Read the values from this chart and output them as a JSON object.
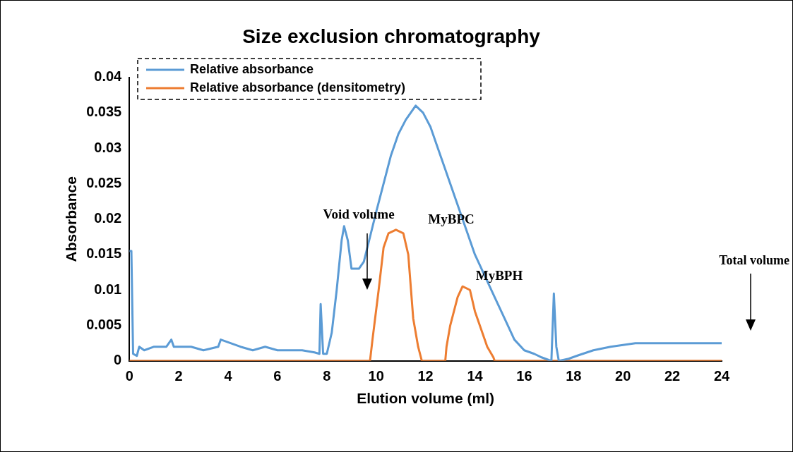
{
  "chart_data": {
    "type": "line",
    "title": "Size exclusion chromatography",
    "xlabel": "Elution volume (ml)",
    "ylabel": "Absorbance",
    "xlim": [
      0,
      24
    ],
    "xticks": [
      0,
      2,
      4,
      6,
      8,
      10,
      12,
      14,
      16,
      18,
      20,
      22,
      24
    ],
    "ylim": [
      0,
      0.04
    ],
    "yticks": [
      0,
      0.005,
      0.01,
      0.015,
      0.02,
      0.025,
      0.03,
      0.035,
      0.04
    ],
    "grid": false,
    "legend": "top left",
    "marker": "none",
    "line_style": "solid",
    "series": [
      {
        "name": "Relative absorbance",
        "color": "#5b9bd5",
        "x": [
          0,
          0.08,
          0.15,
          0.3,
          0.4,
          0.6,
          1.0,
          1.5,
          1.7,
          1.8,
          2.5,
          3.0,
          3.6,
          3.7,
          4.5,
          5.0,
          5.5,
          6.0,
          6.5,
          7.0,
          7.5,
          7.7,
          7.75,
          7.85,
          8.0,
          8.2,
          8.4,
          8.6,
          8.7,
          8.85,
          9.0,
          9.3,
          9.5,
          9.75,
          10.0,
          10.3,
          10.6,
          10.9,
          11.2,
          11.4,
          11.6,
          11.9,
          12.2,
          12.5,
          12.8,
          13.2,
          13.6,
          14.0,
          14.4,
          14.8,
          15.2,
          15.6,
          16.0,
          16.4,
          16.7,
          17.1,
          17.2,
          17.3,
          17.4,
          17.8,
          18.2,
          18.8,
          19.5,
          20.5,
          22,
          24
        ],
        "values": [
          0.0155,
          0.0155,
          0.001,
          0.0007,
          0.002,
          0.0015,
          0.002,
          0.002,
          0.003,
          0.002,
          0.002,
          0.0015,
          0.002,
          0.003,
          0.002,
          0.0015,
          0.002,
          0.0015,
          0.0015,
          0.0015,
          0.0012,
          0.001,
          0.008,
          0.001,
          0.001,
          0.004,
          0.01,
          0.017,
          0.019,
          0.017,
          0.013,
          0.013,
          0.014,
          0.0175,
          0.021,
          0.025,
          0.029,
          0.032,
          0.034,
          0.035,
          0.036,
          0.035,
          0.033,
          0.03,
          0.027,
          0.023,
          0.019,
          0.015,
          0.012,
          0.009,
          0.006,
          0.003,
          0.0015,
          0.001,
          0.0005,
          0,
          0.0095,
          0.002,
          0,
          0.0003,
          0.0008,
          0.0015,
          0.002,
          0.0025,
          0.0025,
          0.0025
        ]
      },
      {
        "name": "Relative absorbance (densitometry)",
        "color": "#ed7d31",
        "x": [
          0,
          9.75,
          9.85,
          10.1,
          10.3,
          10.5,
          10.8,
          11.1,
          11.3,
          11.5,
          11.7,
          11.85,
          12.8,
          12.85,
          13.0,
          13.3,
          13.5,
          13.8,
          14.0,
          14.5,
          14.75,
          14.8,
          24
        ],
        "values": [
          0,
          0,
          0.003,
          0.01,
          0.016,
          0.018,
          0.0185,
          0.018,
          0.015,
          0.006,
          0.002,
          0,
          0,
          0.002,
          0.005,
          0.009,
          0.0105,
          0.01,
          0.007,
          0.002,
          0.0005,
          0,
          0
        ]
      }
    ],
    "annotations": [
      "Void volume",
      "MyBPC",
      "MyBPH",
      "Total volume"
    ]
  }
}
